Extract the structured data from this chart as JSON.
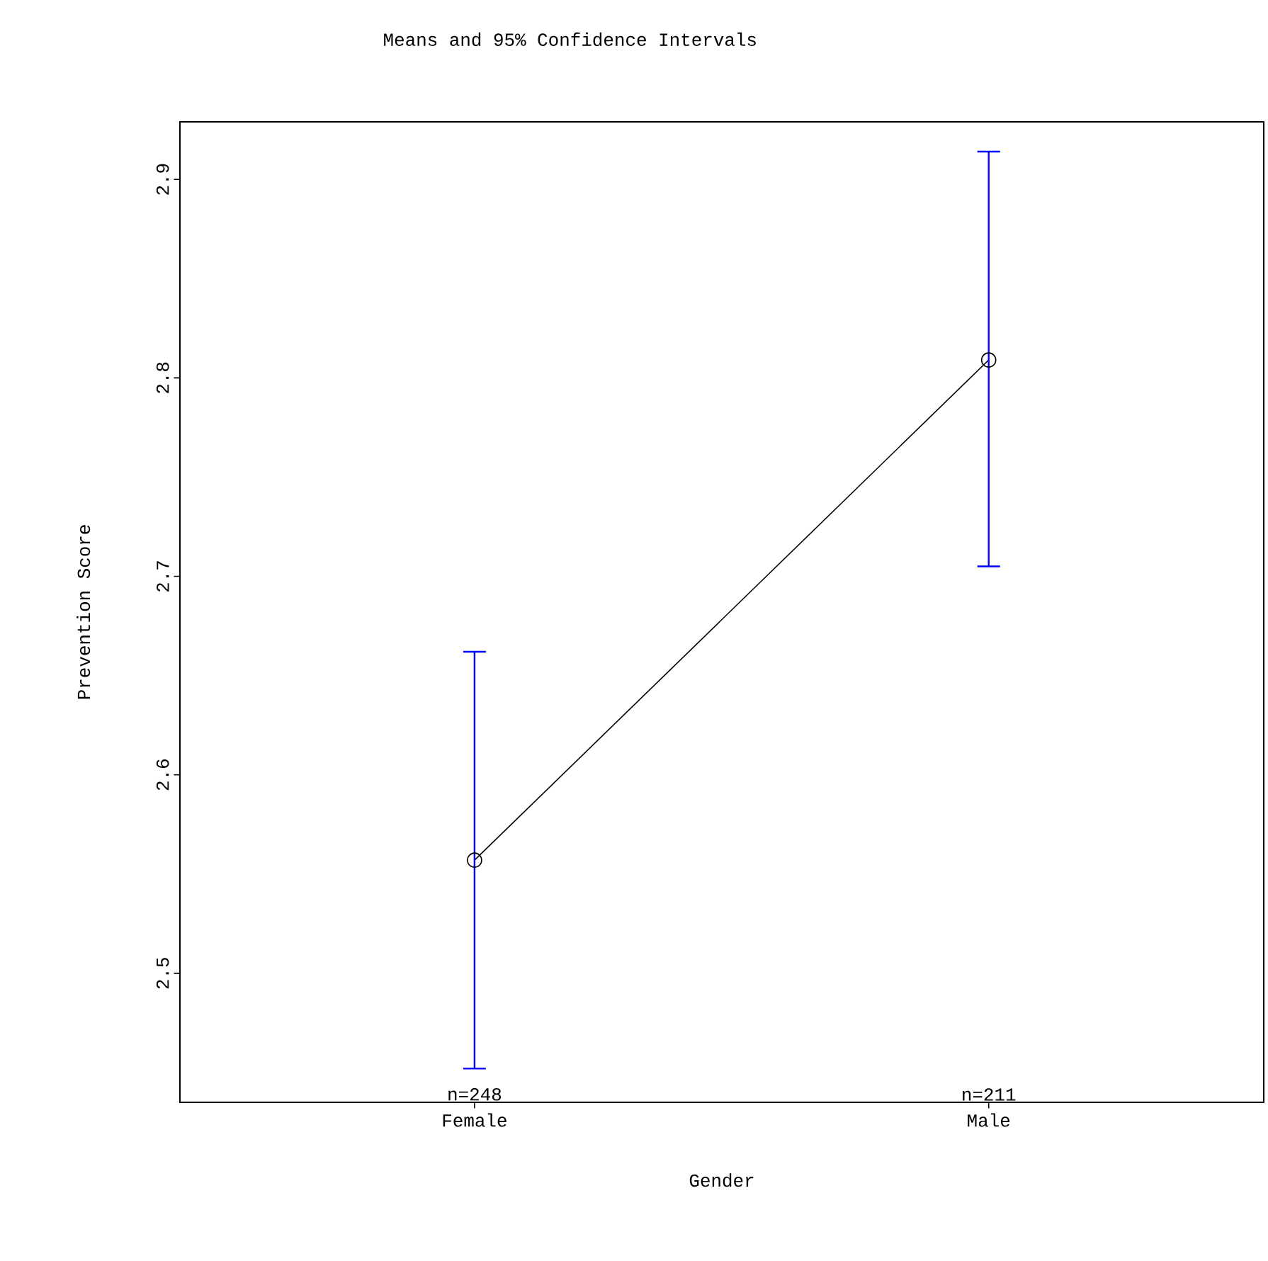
{
  "chart_data": {
    "type": "line",
    "title": "Means and 95% Confidence Intervals",
    "xlabel": "Gender",
    "ylabel": "Prevention Score",
    "categories": [
      "Female",
      "Male"
    ],
    "series": [
      {
        "color": "#000000",
        "values": [
          2.557,
          2.809
        ],
        "errors": [
          [
            2.452,
            2.662
          ],
          [
            2.705,
            2.914
          ]
        ]
      }
    ],
    "ylim": [
      2.435,
      2.929
    ],
    "yticks": [
      2.5,
      2.6,
      2.7,
      2.8,
      2.9
    ],
    "marker": "circle",
    "line_style": "solid",
    "grid": false,
    "annotations": [
      "n=248",
      "n=211"
    ]
  }
}
